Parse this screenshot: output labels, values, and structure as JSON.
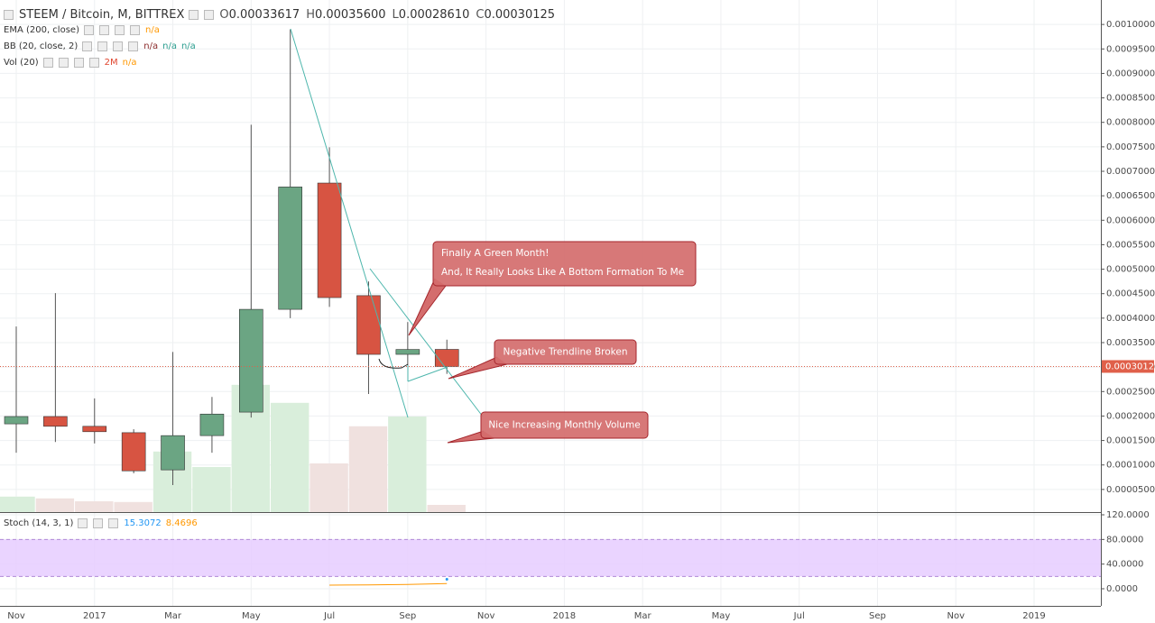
{
  "chart_data": [
    {
      "type": "candlestick",
      "title": "STEEM / Bitcoin, M, BITTREX",
      "ohlc_header": [
        {
          "label": "O",
          "value": "0.00033617"
        },
        {
          "label": "H",
          "value": "0.00035600"
        },
        {
          "label": "L",
          "value": "0.00028610"
        },
        {
          "label": "C",
          "value": "0.00030125"
        }
      ],
      "indicators": [
        {
          "label": "EMA (200, close)",
          "values": [
            "n/a"
          ],
          "colors": [
            "#ff9800"
          ]
        },
        {
          "label": "BB (20, close, 2)",
          "values": [
            "n/a",
            "n/a",
            "n/a"
          ],
          "colors": [
            "#8b2b2b",
            "#2a9d8f",
            "#2a9d8f"
          ]
        },
        {
          "label": "Vol (20)",
          "values": [
            "2M",
            "n/a"
          ],
          "colors": [
            "#e0452e",
            "#ff9800"
          ]
        }
      ],
      "x": [
        "2016-11",
        "2016-12",
        "2017-01",
        "2017-02",
        "2017-03",
        "2017-04",
        "2017-05",
        "2017-06",
        "2017-07",
        "2017-08",
        "2017-09",
        "2017-10"
      ],
      "open": [
        0.000184,
        0.000199,
        0.000179,
        0.000166,
        9e-05,
        0.00016,
        0.000208,
        0.000418,
        0.000676,
        0.000446,
        0.000326,
        0.00033617
      ],
      "high": [
        0.000383,
        0.000451,
        0.000236,
        0.000173,
        0.000331,
        0.000239,
        0.000795,
        0.00099,
        0.000749,
        0.000475,
        0.000392,
        0.000356
      ],
      "low": [
        0.000125,
        0.000147,
        0.000144,
        8.3e-05,
        5.9e-05,
        0.000125,
        0.000197,
        0.0004,
        0.000423,
        0.000245,
        0.000304,
        0.0002861
      ],
      "close": [
        0.000199,
        0.000179,
        0.000168,
        8.8e-05,
        0.00016,
        0.000204,
        0.000418,
        0.000668,
        0.000442,
        0.000326,
        0.000336,
        0.00030125
      ],
      "up_color": "#6ba583",
      "down_color": "#d75442",
      "volume": {
        "values": [
          4.3,
          3.8,
          3,
          2.8,
          16.8,
          12.5,
          35.3,
          30.3,
          13.5,
          23.8,
          26.5,
          2
        ],
        "ylim": [
          0,
          142
        ],
        "up_color": "#d9eedb",
        "down_color": "#f0e1df"
      },
      "xlim": [
        "2016-11",
        "2019-02"
      ],
      "xticks": [
        {
          "value": "2016-11",
          "label": "Nov"
        },
        {
          "value": "2017-01",
          "label": "2017"
        },
        {
          "value": "2017-03",
          "label": "Mar"
        },
        {
          "value": "2017-05",
          "label": "May"
        },
        {
          "value": "2017-07",
          "label": "Jul"
        },
        {
          "value": "2017-09",
          "label": "Sep"
        },
        {
          "value": "2017-11",
          "label": "Nov"
        },
        {
          "value": "2018-01",
          "label": "2018"
        },
        {
          "value": "2018-03",
          "label": "Mar"
        },
        {
          "value": "2018-05",
          "label": "May"
        },
        {
          "value": "2018-07",
          "label": "Jul"
        },
        {
          "value": "2018-09",
          "label": "Sep"
        },
        {
          "value": "2018-11",
          "label": "Nov"
        },
        {
          "value": "2019-01",
          "label": "2019"
        }
      ],
      "ylim": [
        3.7e-06,
        0.00105
      ],
      "yticks": [
        {
          "value": 5e-05,
          "label": "0.00005000"
        },
        {
          "value": 0.0001,
          "label": "0.00010000"
        },
        {
          "value": 0.00015,
          "label": "0.00015000"
        },
        {
          "value": 0.0002,
          "label": "0.00020000"
        },
        {
          "value": 0.00025,
          "label": "0.00025000"
        },
        {
          "value": 0.0003,
          "label": "0.00030000"
        },
        {
          "value": 0.00035,
          "label": "0.00035000"
        },
        {
          "value": 0.0004,
          "label": "0.00040000"
        },
        {
          "value": 0.00045,
          "label": "0.00045000"
        },
        {
          "value": 0.0005,
          "label": "0.00050000"
        },
        {
          "value": 0.00055,
          "label": "0.00055000"
        },
        {
          "value": 0.0006,
          "label": "0.00060000"
        },
        {
          "value": 0.00065,
          "label": "0.00065000"
        },
        {
          "value": 0.0007,
          "label": "0.00070000"
        },
        {
          "value": 0.00075,
          "label": "0.00075000"
        },
        {
          "value": 0.0008,
          "label": "0.00080000"
        },
        {
          "value": 0.00085,
          "label": "0.00085000"
        },
        {
          "value": 0.0009,
          "label": "0.00090000"
        },
        {
          "value": 0.00095,
          "label": "0.00095000"
        },
        {
          "value": 0.001,
          "label": "0.00100000"
        }
      ],
      "last_price": {
        "value": 0.00030125,
        "label": "0.00030125"
      },
      "grid": true,
      "annotations": [
        {
          "lines": [
            "Finally A Green Month!",
            "And, It Really Looks Like A Bottom Formation To Me"
          ]
        },
        {
          "lines": [
            "Negative Trendline Broken"
          ]
        },
        {
          "lines": [
            "Nice Increasing Monthly Volume"
          ]
        }
      ]
    },
    {
      "type": "stochastic",
      "title": "Stoch (14, 3, 1)",
      "series": [
        {
          "color": "#2196f3",
          "values": [
            null,
            null,
            null,
            null,
            null,
            null,
            null,
            null,
            null,
            null,
            null,
            15.3072
          ]
        },
        {
          "color": "#ff9800",
          "values": [
            null,
            null,
            null,
            null,
            null,
            null,
            null,
            null,
            5.9,
            6.3,
            6.9,
            8.4696
          ]
        }
      ],
      "band": [
        20,
        80
      ],
      "band_color": "#e6ccff",
      "ylim": [
        -27.8,
        124.4
      ],
      "yticks": [
        {
          "value": 120,
          "label": "120.0000"
        },
        {
          "value": 80,
          "label": "80.0000"
        },
        {
          "value": 40,
          "label": "40.0000"
        },
        {
          "value": 0,
          "label": "0.0000"
        }
      ],
      "grid": true
    }
  ]
}
